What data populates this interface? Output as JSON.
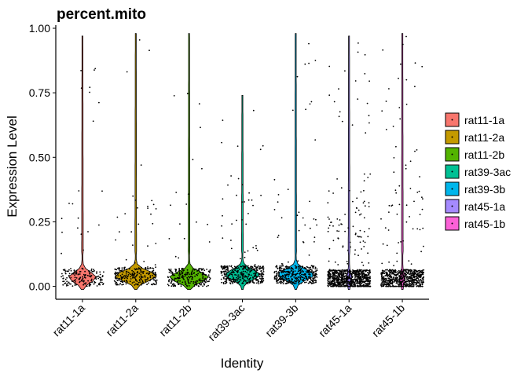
{
  "chart_data": {
    "type": "violin",
    "title": "percent.mito",
    "xlabel": "Identity",
    "ylabel": "Expression Level",
    "ylim": [
      -0.05,
      1.0
    ],
    "yticks": [
      "0.00",
      "0.25",
      "0.50",
      "0.75",
      "1.00"
    ],
    "ytick_values": [
      0,
      0.25,
      0.5,
      0.75,
      1.0
    ],
    "categories": [
      "rat11-1a",
      "rat11-2a",
      "rat11-2b",
      "rat39-3ac",
      "rat39-3b",
      "rat45-1a",
      "rat45-1b"
    ],
    "legend_position": "right",
    "series": [
      {
        "name": "rat11-1a",
        "color": "#F8766D",
        "median": 0.035,
        "max": 0.97,
        "jitter_points": 180,
        "violin_width": 0.55
      },
      {
        "name": "rat11-2a",
        "color": "#C49A00",
        "median": 0.04,
        "max": 0.98,
        "jitter_points": 260,
        "violin_width": 0.85
      },
      {
        "name": "rat11-2b",
        "color": "#53B400",
        "median": 0.035,
        "max": 0.98,
        "jitter_points": 240,
        "violin_width": 0.8
      },
      {
        "name": "rat39-3ac",
        "color": "#00C094",
        "median": 0.045,
        "max": 0.74,
        "jitter_points": 380,
        "violin_width": 0.7
      },
      {
        "name": "rat39-3b",
        "color": "#00B6EB",
        "median": 0.045,
        "max": 0.98,
        "jitter_points": 400,
        "violin_width": 0.75
      },
      {
        "name": "rat45-1a",
        "color": "#A58AFF",
        "median": 0.03,
        "max": 0.97,
        "jitter_points": 900,
        "violin_width": 0.1
      },
      {
        "name": "rat45-1b",
        "color": "#FB61D7",
        "median": 0.03,
        "max": 0.98,
        "jitter_points": 700,
        "violin_width": 0.1
      }
    ]
  }
}
